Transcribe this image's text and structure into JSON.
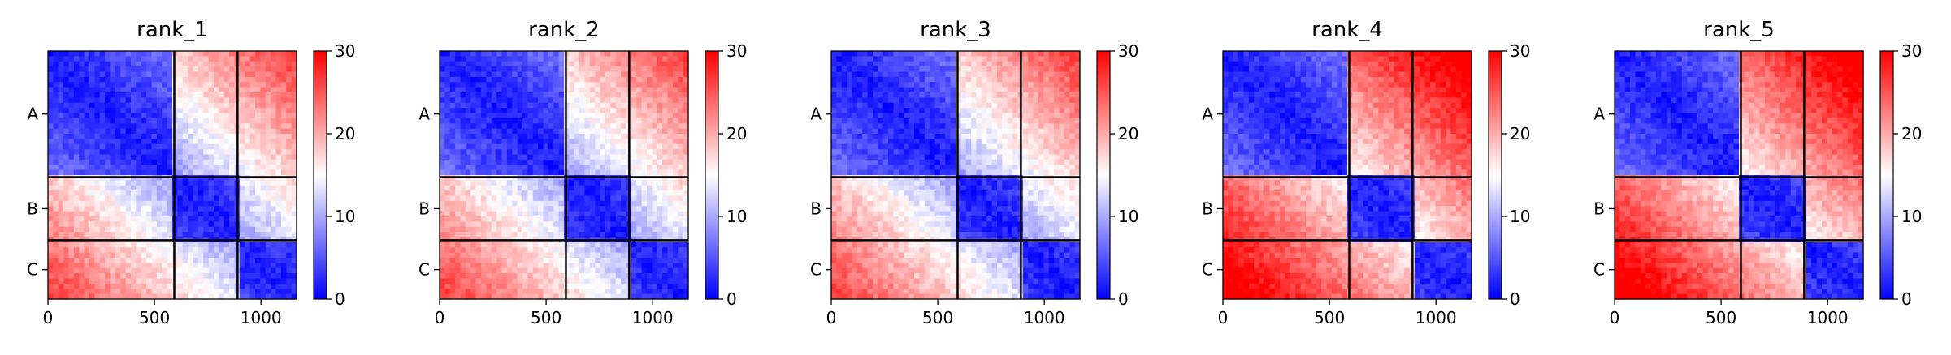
{
  "chart_data": [
    {
      "type": "heatmap",
      "title": "rank_1",
      "xlim": [
        0,
        1167
      ],
      "x_ticks": [
        0,
        500,
        1000
      ],
      "y_ticks": [
        "A",
        "B",
        "C"
      ],
      "block_boundaries": [
        0,
        593,
        890,
        1167
      ],
      "colorbar": {
        "min": 0,
        "max": 30,
        "ticks": [
          0,
          10,
          20,
          30
        ],
        "colormap": [
          "#0000ff",
          "#ffffff",
          "#ff0000"
        ]
      },
      "offdiag_level": 0.3
    },
    {
      "type": "heatmap",
      "title": "rank_2",
      "xlim": [
        0,
        1167
      ],
      "x_ticks": [
        0,
        500,
        1000
      ],
      "y_ticks": [
        "A",
        "B",
        "C"
      ],
      "block_boundaries": [
        0,
        593,
        890,
        1167
      ],
      "colorbar": {
        "min": 0,
        "max": 30,
        "ticks": [
          0,
          10,
          20,
          30
        ],
        "colormap": [
          "#0000ff",
          "#ffffff",
          "#ff0000"
        ]
      },
      "offdiag_level": 0.3
    },
    {
      "type": "heatmap",
      "title": "rank_3",
      "xlim": [
        0,
        1167
      ],
      "x_ticks": [
        0,
        500,
        1000
      ],
      "y_ticks": [
        "A",
        "B",
        "C"
      ],
      "block_boundaries": [
        0,
        593,
        890,
        1167
      ],
      "colorbar": {
        "min": 0,
        "max": 30,
        "ticks": [
          0,
          10,
          20,
          30
        ],
        "colormap": [
          "#0000ff",
          "#ffffff",
          "#ff0000"
        ]
      },
      "offdiag_level": 0.3
    },
    {
      "type": "heatmap",
      "title": "rank_4",
      "xlim": [
        0,
        1167
      ],
      "x_ticks": [
        0,
        500,
        1000
      ],
      "y_ticks": [
        "A",
        "B",
        "C"
      ],
      "block_boundaries": [
        0,
        593,
        890,
        1167
      ],
      "colorbar": {
        "min": 0,
        "max": 30,
        "ticks": [
          0,
          10,
          20,
          30
        ],
        "colormap": [
          "#0000ff",
          "#ffffff",
          "#ff0000"
        ]
      },
      "offdiag_level": 0.5
    },
    {
      "type": "heatmap",
      "title": "rank_5",
      "xlim": [
        0,
        1167
      ],
      "x_ticks": [
        0,
        500,
        1000
      ],
      "y_ticks": [
        "A",
        "B",
        "C"
      ],
      "block_boundaries": [
        0,
        593,
        890,
        1167
      ],
      "colorbar": {
        "min": 0,
        "max": 30,
        "ticks": [
          0,
          10,
          20,
          30
        ],
        "colormap": [
          "#0000ff",
          "#ffffff",
          "#ff0000"
        ]
      },
      "offdiag_level": 0.5
    }
  ]
}
